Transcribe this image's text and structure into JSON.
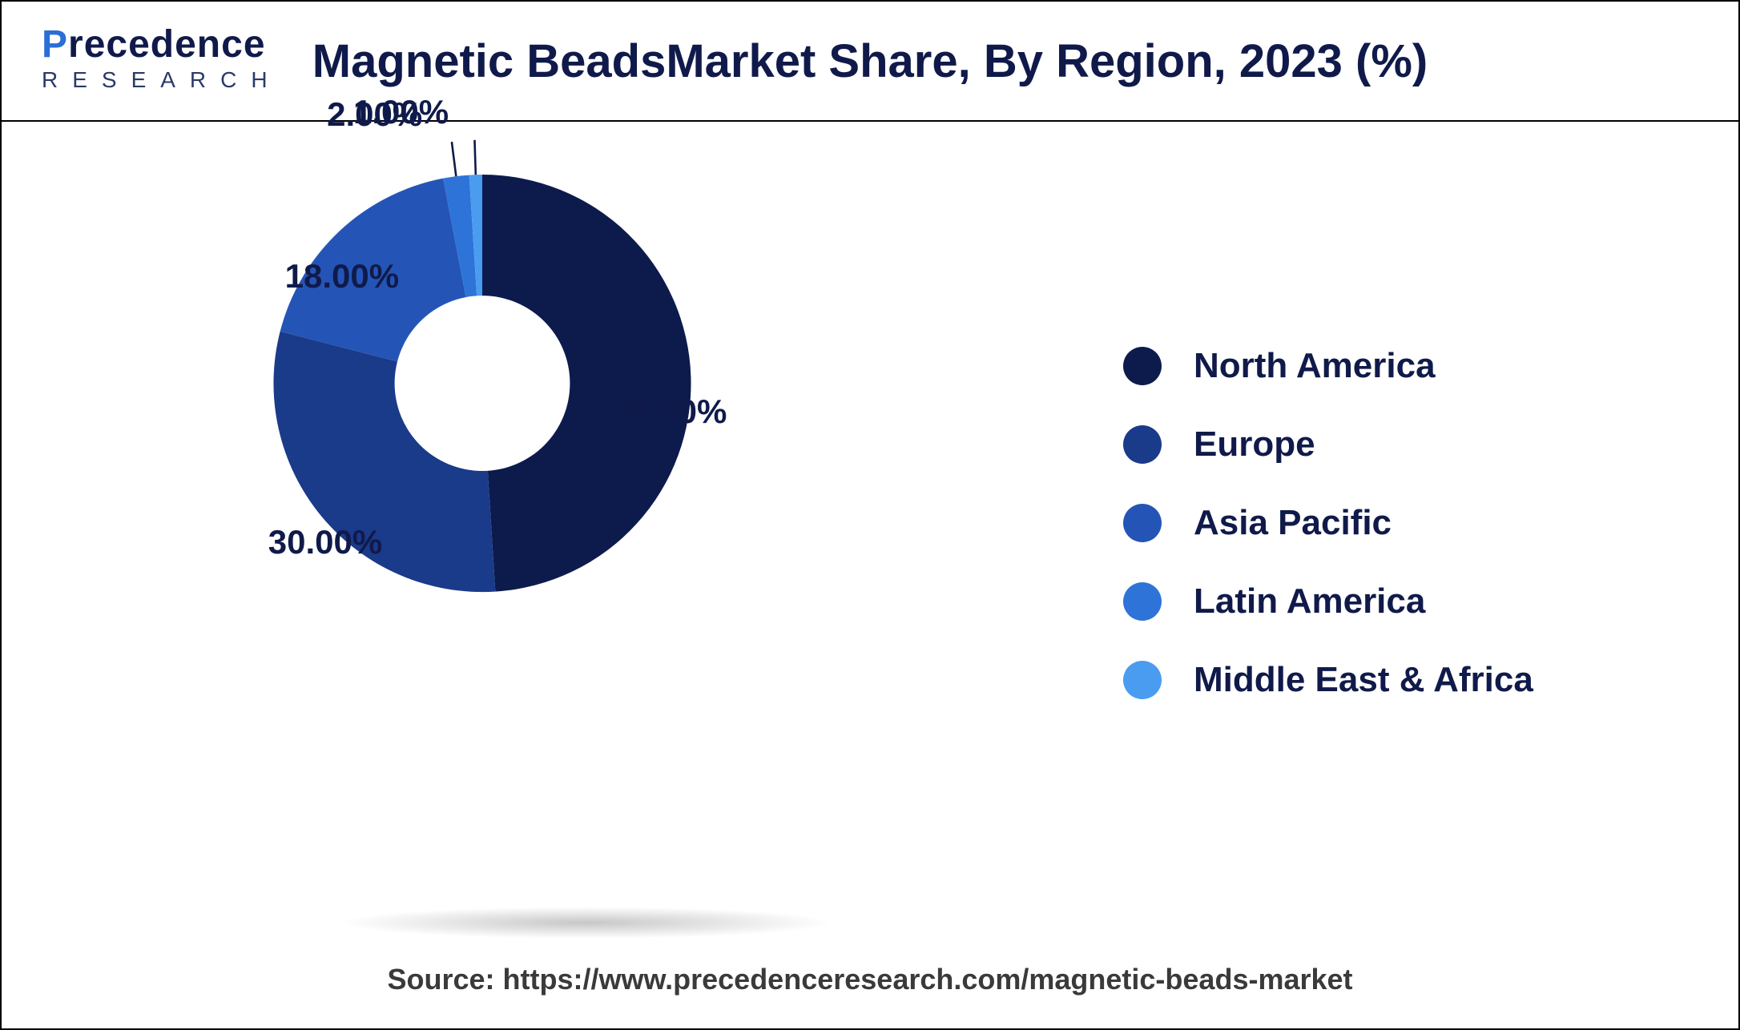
{
  "logo": {
    "line1_prefix_accent": "P",
    "line1_rest": "recedence",
    "line2": "RESEARCH"
  },
  "title": "Magnetic BeadsMarket Share, By Region, 2023 (%)",
  "chart": {
    "type": "donut",
    "background_color": "#ffffff",
    "inner_radius_ratio": 0.42,
    "outer_radius": 300,
    "center_fill": "#ffffff",
    "label_fontsize": 42,
    "label_color": "#101a4a",
    "slices": [
      {
        "name": "North America",
        "value": 49.0,
        "label": "49.00%",
        "color": "#0d1b4c"
      },
      {
        "name": "Europe",
        "value": 30.0,
        "label": "30.00%",
        "color": "#1a3a8a"
      },
      {
        "name": "Asia Pacific",
        "value": 18.0,
        "label": "18.00%",
        "color": "#2455b6"
      },
      {
        "name": "Latin America",
        "value": 2.0,
        "label": "2.00%",
        "color": "#2e73d8"
      },
      {
        "name": "Middle East & Africa",
        "value": 1.0,
        "label": "1.00%",
        "color": "#4a9cf0"
      }
    ]
  },
  "legend": {
    "dot_size": 48,
    "fontsize": 44,
    "color": "#101a4a",
    "items": [
      {
        "label": "North America",
        "color": "#0d1b4c"
      },
      {
        "label": "Europe",
        "color": "#1a3a8a"
      },
      {
        "label": "Asia Pacific",
        "color": "#2455b6"
      },
      {
        "label": "Latin America",
        "color": "#2e73d8"
      },
      {
        "label": "Middle East & Africa",
        "color": "#4a9cf0"
      }
    ]
  },
  "source": "Source: https://www.precedenceresearch.com/magnetic-beads-market"
}
